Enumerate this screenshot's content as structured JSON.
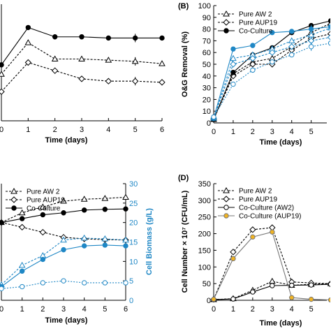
{
  "colors": {
    "black": "#000000",
    "blue": "#1f87c5",
    "orange": "#f0b323",
    "gray": "#777777"
  },
  "chart_data": [
    {
      "panel": "",
      "type": "line",
      "x": [
        0,
        1,
        2,
        3,
        4,
        5,
        6
      ],
      "xlabel": "Time (days)",
      "ylabel": "",
      "ylim": [
        0,
        100
      ],
      "xticks": [
        "0",
        "1",
        "2",
        "3",
        "4",
        "5",
        "6"
      ],
      "yticks": [],
      "series": [
        {
          "name": "",
          "style": "black-triangle",
          "values": [
            40,
            67,
            53,
            53,
            52,
            51,
            49
          ]
        },
        {
          "name": "",
          "style": "black-diamond",
          "values": [
            25,
            50,
            43,
            36,
            34,
            34,
            33
          ]
        },
        {
          "name": "",
          "style": "black-filled",
          "values": [
            48,
            80,
            72,
            72,
            71,
            71,
            71
          ]
        }
      ]
    },
    {
      "panel": "(B)",
      "type": "line",
      "x": [
        0,
        1,
        2,
        3,
        4,
        5,
        6
      ],
      "xlabel": "Time (days)",
      "ylabel": "O&G Removal (%)",
      "ylim": [
        0,
        100
      ],
      "xticks": [
        "0",
        "1",
        "2",
        "3",
        "4",
        "5"
      ],
      "yticks": [
        "0",
        "10",
        "20",
        "30",
        "40",
        "50",
        "60",
        "70",
        "80",
        "90",
        "100"
      ],
      "legend": [
        "Pure AW 2",
        "Pure AUP19",
        "Co-Culture"
      ],
      "series": [
        {
          "name": "Pure AW 2",
          "style": "black-triangle",
          "values": [
            3,
            42,
            52,
            55,
            65,
            77,
            85
          ]
        },
        {
          "name": "Pure AUP19",
          "style": "black-diamond",
          "values": [
            3,
            40,
            50,
            50,
            62,
            72,
            76
          ]
        },
        {
          "name": "Co-Culture",
          "style": "black-filled",
          "values": [
            3,
            43,
            58,
            64,
            77,
            83,
            87
          ]
        },
        {
          "name": "",
          "style": "blue-triangle",
          "values": [
            4,
            55,
            58,
            63,
            70,
            75,
            81
          ]
        },
        {
          "name": "",
          "style": "blue-diamond",
          "values": [
            4,
            50,
            55,
            60,
            65,
            70,
            73
          ]
        },
        {
          "name": "",
          "style": "blue-filled",
          "values": [
            4,
            63,
            66,
            77,
            78,
            80,
            82
          ]
        },
        {
          "name": "",
          "style": "blue-circle",
          "values": [
            5,
            33,
            45,
            52,
            58,
            65,
            68
          ]
        }
      ]
    },
    {
      "panel": "",
      "type": "line",
      "x": [
        0,
        1,
        2,
        3,
        4,
        5,
        6
      ],
      "xlabel": "Time (days)",
      "ylabel": "Cell Biomass (g/L)",
      "ylim": [
        0,
        30
      ],
      "xticks": [
        "0",
        "1",
        "2",
        "3",
        "4",
        "5",
        "6"
      ],
      "yticks": [
        "0",
        "5",
        "10",
        "15",
        "20",
        "25",
        "30"
      ],
      "legend": [
        "Pure AW 2",
        "Pure AUP19",
        "Co-Culture"
      ],
      "series": [
        {
          "name": "Pure AW 2",
          "style": "black-triangle",
          "values": [
            20,
            22.5,
            24,
            25.5,
            26,
            26.2,
            26.5
          ]
        },
        {
          "name": "Pure AUP19",
          "style": "black-diamond",
          "values": [
            20,
            18.8,
            17.5,
            16.2,
            15.8,
            15.6,
            15.5
          ]
        },
        {
          "name": "Co-Culture",
          "style": "black-filled",
          "values": [
            20,
            21,
            22,
            22.5,
            23.2,
            23.4,
            23.5
          ]
        },
        {
          "name": "",
          "style": "blue-triangle",
          "values": [
            4,
            9,
            11.5,
            15.5,
            16,
            15.8,
            15.5
          ]
        },
        {
          "name": "",
          "style": "blue-filled",
          "values": [
            3.5,
            7.5,
            10.5,
            13,
            14,
            14.2,
            14
          ]
        },
        {
          "name": "",
          "style": "blue-circle",
          "values": [
            3,
            3.5,
            4.5,
            5,
            4.5,
            4.5,
            4.5
          ]
        }
      ]
    },
    {
      "panel": "(D)",
      "type": "line",
      "x": [
        0,
        1,
        2,
        3,
        4,
        5,
        6
      ],
      "xlabel": "Time (days)",
      "ylabel": "Cell Number × 10⁷ (CFU/mL)",
      "ylim": [
        0,
        350
      ],
      "xticks": [
        "0",
        "1",
        "2",
        "3",
        "4",
        "5"
      ],
      "yticks": [
        "0",
        "50",
        "100",
        "150",
        "200",
        "250",
        "300",
        "350"
      ],
      "legend": [
        "Pure AW 2",
        "Pure AUP19",
        "Co-Culture (AW2)",
        "Co-Culture (AUP19)"
      ],
      "series": [
        {
          "name": "Pure AW 2",
          "style": "black-triangle",
          "values": [
            2,
            5,
            30,
            57,
            45,
            48,
            50
          ]
        },
        {
          "name": "Pure AUP19",
          "style": "black-diamond",
          "values": [
            3,
            145,
            212,
            218,
            55,
            52,
            50
          ]
        },
        {
          "name": "Co-Culture (AW2)",
          "style": "black-circle",
          "values": [
            2,
            4,
            25,
            44,
            45,
            46,
            48
          ]
        },
        {
          "name": "Co-Culture (AUP19)",
          "style": "orange-filled",
          "values": [
            3,
            125,
            190,
            205,
            8,
            3,
            1
          ]
        }
      ]
    }
  ]
}
